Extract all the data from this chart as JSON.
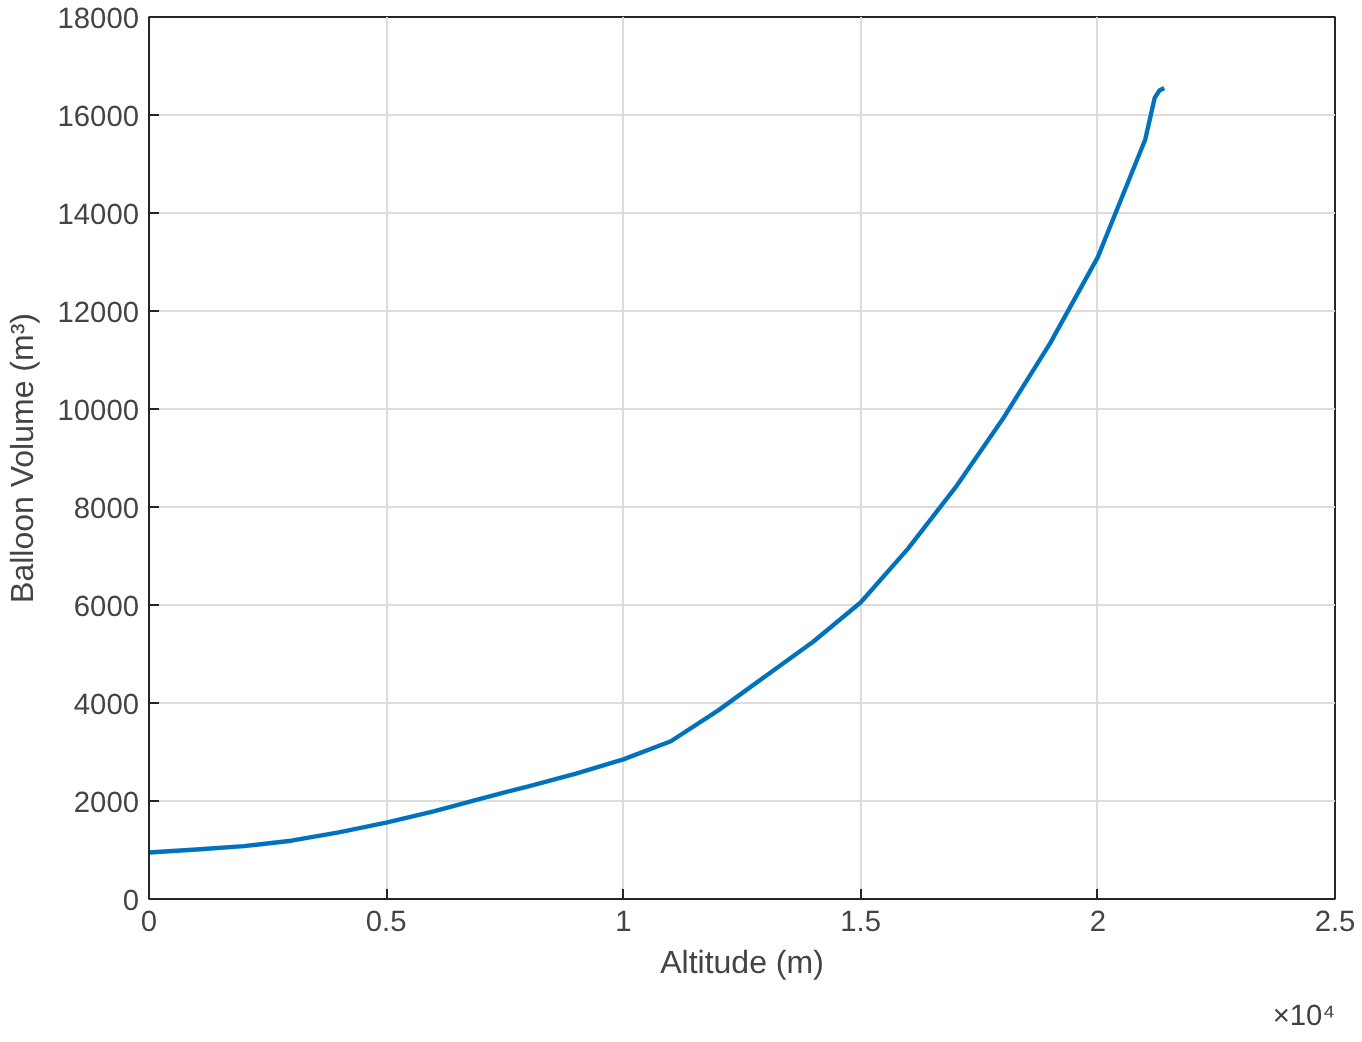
{
  "chart_data": {
    "type": "line",
    "xlabel": "Altitude (m)",
    "ylabel": "Balloon Volume (m³)",
    "x": [
      0,
      0.1,
      0.2,
      0.3,
      0.4,
      0.5,
      0.6,
      0.7,
      0.8,
      0.9,
      1.0,
      1.1,
      1.2,
      1.3,
      1.4,
      1.5,
      1.6,
      1.7,
      1.8,
      1.9,
      2.0,
      2.1,
      2.12,
      2.13,
      2.14
    ],
    "series": [
      {
        "color": "#0072bd",
        "values": [
          950,
          1010,
          1080,
          1190,
          1360,
          1560,
          1790,
          2050,
          2300,
          2560,
          2850,
          3220,
          3850,
          4550,
          5250,
          6050,
          7150,
          8400,
          9800,
          11350,
          13100,
          15500,
          16350,
          16500,
          16550
        ]
      }
    ],
    "xlim": [
      0,
      2.5
    ],
    "ylim": [
      0,
      18000
    ],
    "xticks": [
      0,
      0.5,
      1,
      1.5,
      2,
      2.5
    ],
    "yticks": [
      0,
      2000,
      4000,
      6000,
      8000,
      10000,
      12000,
      14000,
      16000,
      18000
    ],
    "annotations": [
      "×10⁴"
    ],
    "grid": true
  }
}
